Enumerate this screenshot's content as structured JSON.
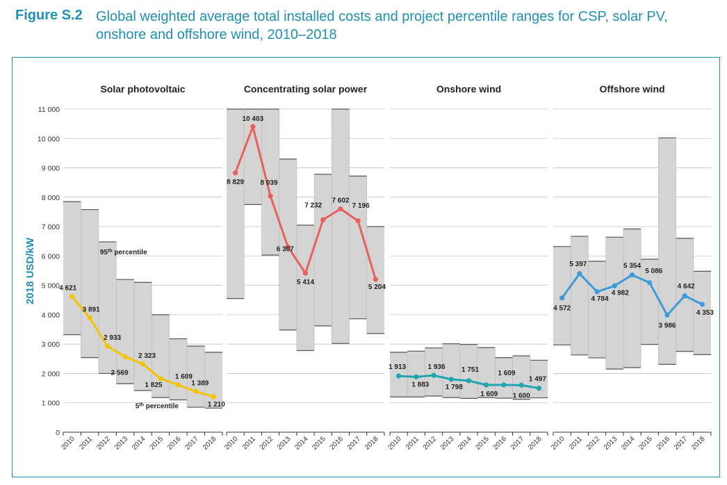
{
  "caption": {
    "figure_number": "Figure S.2",
    "title": "Global weighted average total installed costs and project percentile ranges for CSP, solar PV, onshore and offshore wind, 2010–2018"
  },
  "chart_data": {
    "type": "line",
    "ylabel": "2018 USD/kW",
    "ylim": [
      0,
      11000
    ],
    "yticks": [
      0,
      1000,
      2000,
      3000,
      4000,
      5000,
      6000,
      7000,
      8000,
      9000,
      10000,
      11000
    ],
    "ytick_labels": [
      "0",
      "1 000",
      "2 000",
      "3 000",
      "4 000",
      "5 000",
      "6 000",
      "7 000",
      "8 000",
      "9 000",
      "10 000",
      "11 000"
    ],
    "years": [
      "2010",
      "2011",
      "2012",
      "2013",
      "2014",
      "2015",
      "2016",
      "2017",
      "2018"
    ],
    "grid": true,
    "annotations": {
      "p95": "95th percentile",
      "p95_base": "95",
      "p95_sup": "th",
      "p95_rest": " percentile",
      "p5_base": "5",
      "p5_sup": "th",
      "p5_rest": " percentile"
    },
    "panels": [
      {
        "title": "Solar photovoltaic",
        "color": "#f5c400",
        "values": [
          4621,
          3891,
          2933,
          2569,
          2323,
          1825,
          1609,
          1389,
          1210
        ],
        "labels": [
          "4 621",
          "3 891",
          "2 933",
          "2 569",
          "2 323",
          "1 825",
          "1 609",
          "1 389",
          "1 210"
        ],
        "p95": [
          7850,
          7580,
          6480,
          5200,
          5100,
          4000,
          3180,
          2930,
          2720
        ],
        "p5": [
          3320,
          2540,
          2000,
          1650,
          1420,
          1180,
          1100,
          850,
          820
        ]
      },
      {
        "title": "Concentrating solar power",
        "color": "#e8605a",
        "values": [
          8829,
          10403,
          8039,
          6307,
          5414,
          7232,
          7602,
          7196,
          5204
        ],
        "labels": [
          "8 829",
          "10 403",
          "8 039",
          "6 307",
          "5 414",
          "7 232",
          "7 602",
          "7 196",
          "5 204"
        ],
        "p95": [
          11000,
          11000,
          11000,
          9300,
          7050,
          8780,
          11000,
          8720,
          7000
        ],
        "p5": [
          4550,
          7750,
          6030,
          3480,
          2780,
          3620,
          3020,
          3860,
          3360
        ]
      },
      {
        "title": "Onshore wind",
        "color": "#1ea5b0",
        "values": [
          1913,
          1883,
          1936,
          1798,
          1751,
          1609,
          1609,
          1600,
          1497
        ],
        "labels": [
          "1 913",
          "1 883",
          "1 936",
          "1 798",
          "1 751",
          "1 609",
          "1 609",
          "1 600",
          "1 497"
        ],
        "p95": [
          2720,
          2760,
          2870,
          3010,
          2990,
          2880,
          2540,
          2600,
          2450
        ],
        "p5": [
          1200,
          1200,
          1230,
          1180,
          1150,
          1180,
          1160,
          1120,
          1170
        ]
      },
      {
        "title": "Offshore wind",
        "color": "#3d9bd9",
        "values": [
          4572,
          5397,
          4784,
          4982,
          5354,
          5086,
          3986,
          4642,
          4353
        ],
        "labels": [
          "4 572",
          "5 397",
          "4 784",
          "4 982",
          "5 354",
          "5 086",
          "3 986",
          "4 642",
          "4 353"
        ],
        "p95": [
          6320,
          6670,
          5820,
          6640,
          6920,
          5890,
          10020,
          6600,
          5480
        ],
        "p5": [
          2970,
          2630,
          2530,
          2150,
          2200,
          2990,
          2310,
          2750,
          2640
        ]
      }
    ]
  }
}
